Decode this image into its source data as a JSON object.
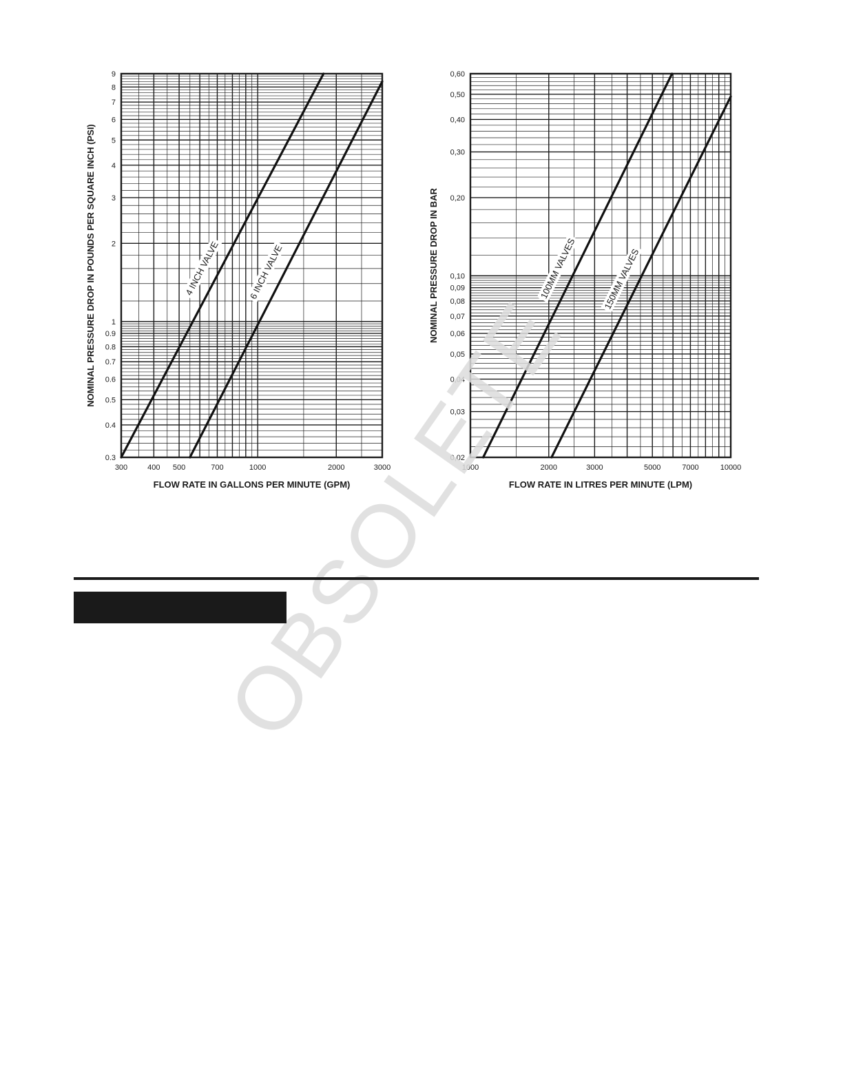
{
  "watermark": "OBSOLETE",
  "chart_data": [
    {
      "type": "line",
      "xscale": "log",
      "yscale": "log",
      "xlim": [
        300,
        3000
      ],
      "ylim": [
        0.3,
        9
      ],
      "grid": true,
      "xlabel": "FLOW RATE IN GALLONS PER MINUTE (GPM)",
      "ylabel": "NOMINAL PRESSURE DROP IN POUNDS PER SQUARE INCH (PSI)",
      "xticks": [
        "300",
        "400",
        "500",
        "700",
        "1000",
        "2000",
        "3000"
      ],
      "yticks": [
        "0.3",
        "0.4",
        "0.5",
        "0.6",
        "0.7",
        "0.8",
        "0.9",
        "1",
        "2",
        "3",
        "4",
        "5",
        "6",
        "7",
        "8",
        "9"
      ],
      "series": [
        {
          "name": "4 INCH VALVE",
          "x": [
            300,
            1787
          ],
          "y": [
            0.3,
            9
          ]
        },
        {
          "name": "6 INCH VALVE",
          "x": [
            550,
            3000
          ],
          "y": [
            0.3,
            8.4
          ]
        }
      ]
    },
    {
      "type": "line",
      "xscale": "log",
      "yscale": "log",
      "xlim": [
        1000,
        10000
      ],
      "ylim": [
        0.02,
        0.6
      ],
      "grid": true,
      "xlabel": "FLOW RATE IN LITRES PER MINUTE (LPM)",
      "ylabel": "NOMINAL PRESSURE DROP IN BAR",
      "xticks": [
        "1000",
        "2000",
        "3000",
        "5000",
        "7000",
        "10000"
      ],
      "yticks": [
        "0,02",
        "0,03",
        "0,04",
        "0,05",
        "0,06",
        "0,07",
        "0,08",
        "0,09",
        "0,10",
        "0,20",
        "0,30",
        "0,40",
        "0,50",
        "0,60"
      ],
      "series": [
        {
          "name": "100MM VALVES",
          "x": [
            1120,
            5950
          ],
          "y": [
            0.02,
            0.6
          ]
        },
        {
          "name": "150MM VALVES",
          "x": [
            2050,
            10000
          ],
          "y": [
            0.02,
            0.49
          ]
        }
      ]
    }
  ]
}
